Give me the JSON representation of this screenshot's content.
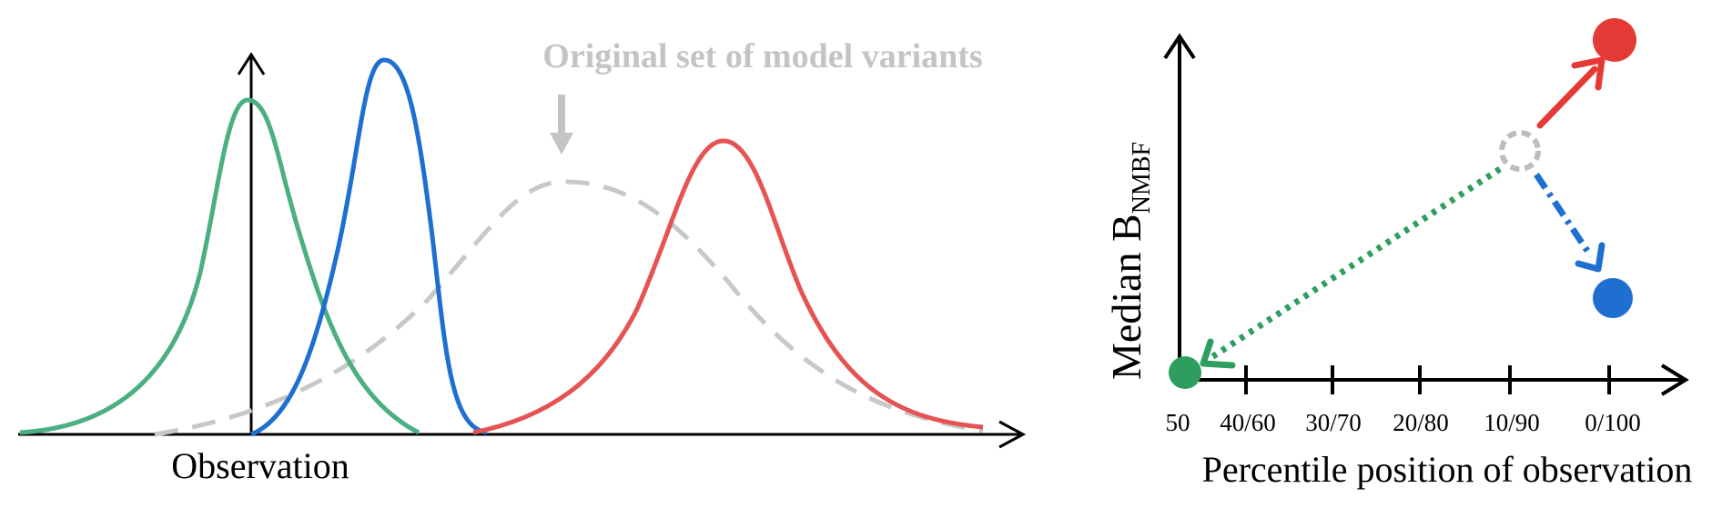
{
  "left_panel": {
    "annotation": "Original set of model variants",
    "xlabel": "Observation",
    "curves": [
      {
        "name": "green-distribution",
        "color": "#4caf82"
      },
      {
        "name": "blue-distribution",
        "color": "#1f6fd1"
      },
      {
        "name": "red-distribution",
        "color": "#e55353"
      },
      {
        "name": "original-distribution",
        "color": "#c8c8c8"
      }
    ]
  },
  "right_panel": {
    "ylabel_main": "Median B",
    "ylabel_sub": "NMBF",
    "xlabel": "Percentile position of observation",
    "ticks": [
      "50",
      "40/60",
      "30/70",
      "20/80",
      "10/90",
      "0/100"
    ],
    "colors": {
      "green": "#2e9e5e",
      "blue": "#1f6fd1",
      "red": "#e53935",
      "grey": "#bdbdbd"
    }
  }
}
